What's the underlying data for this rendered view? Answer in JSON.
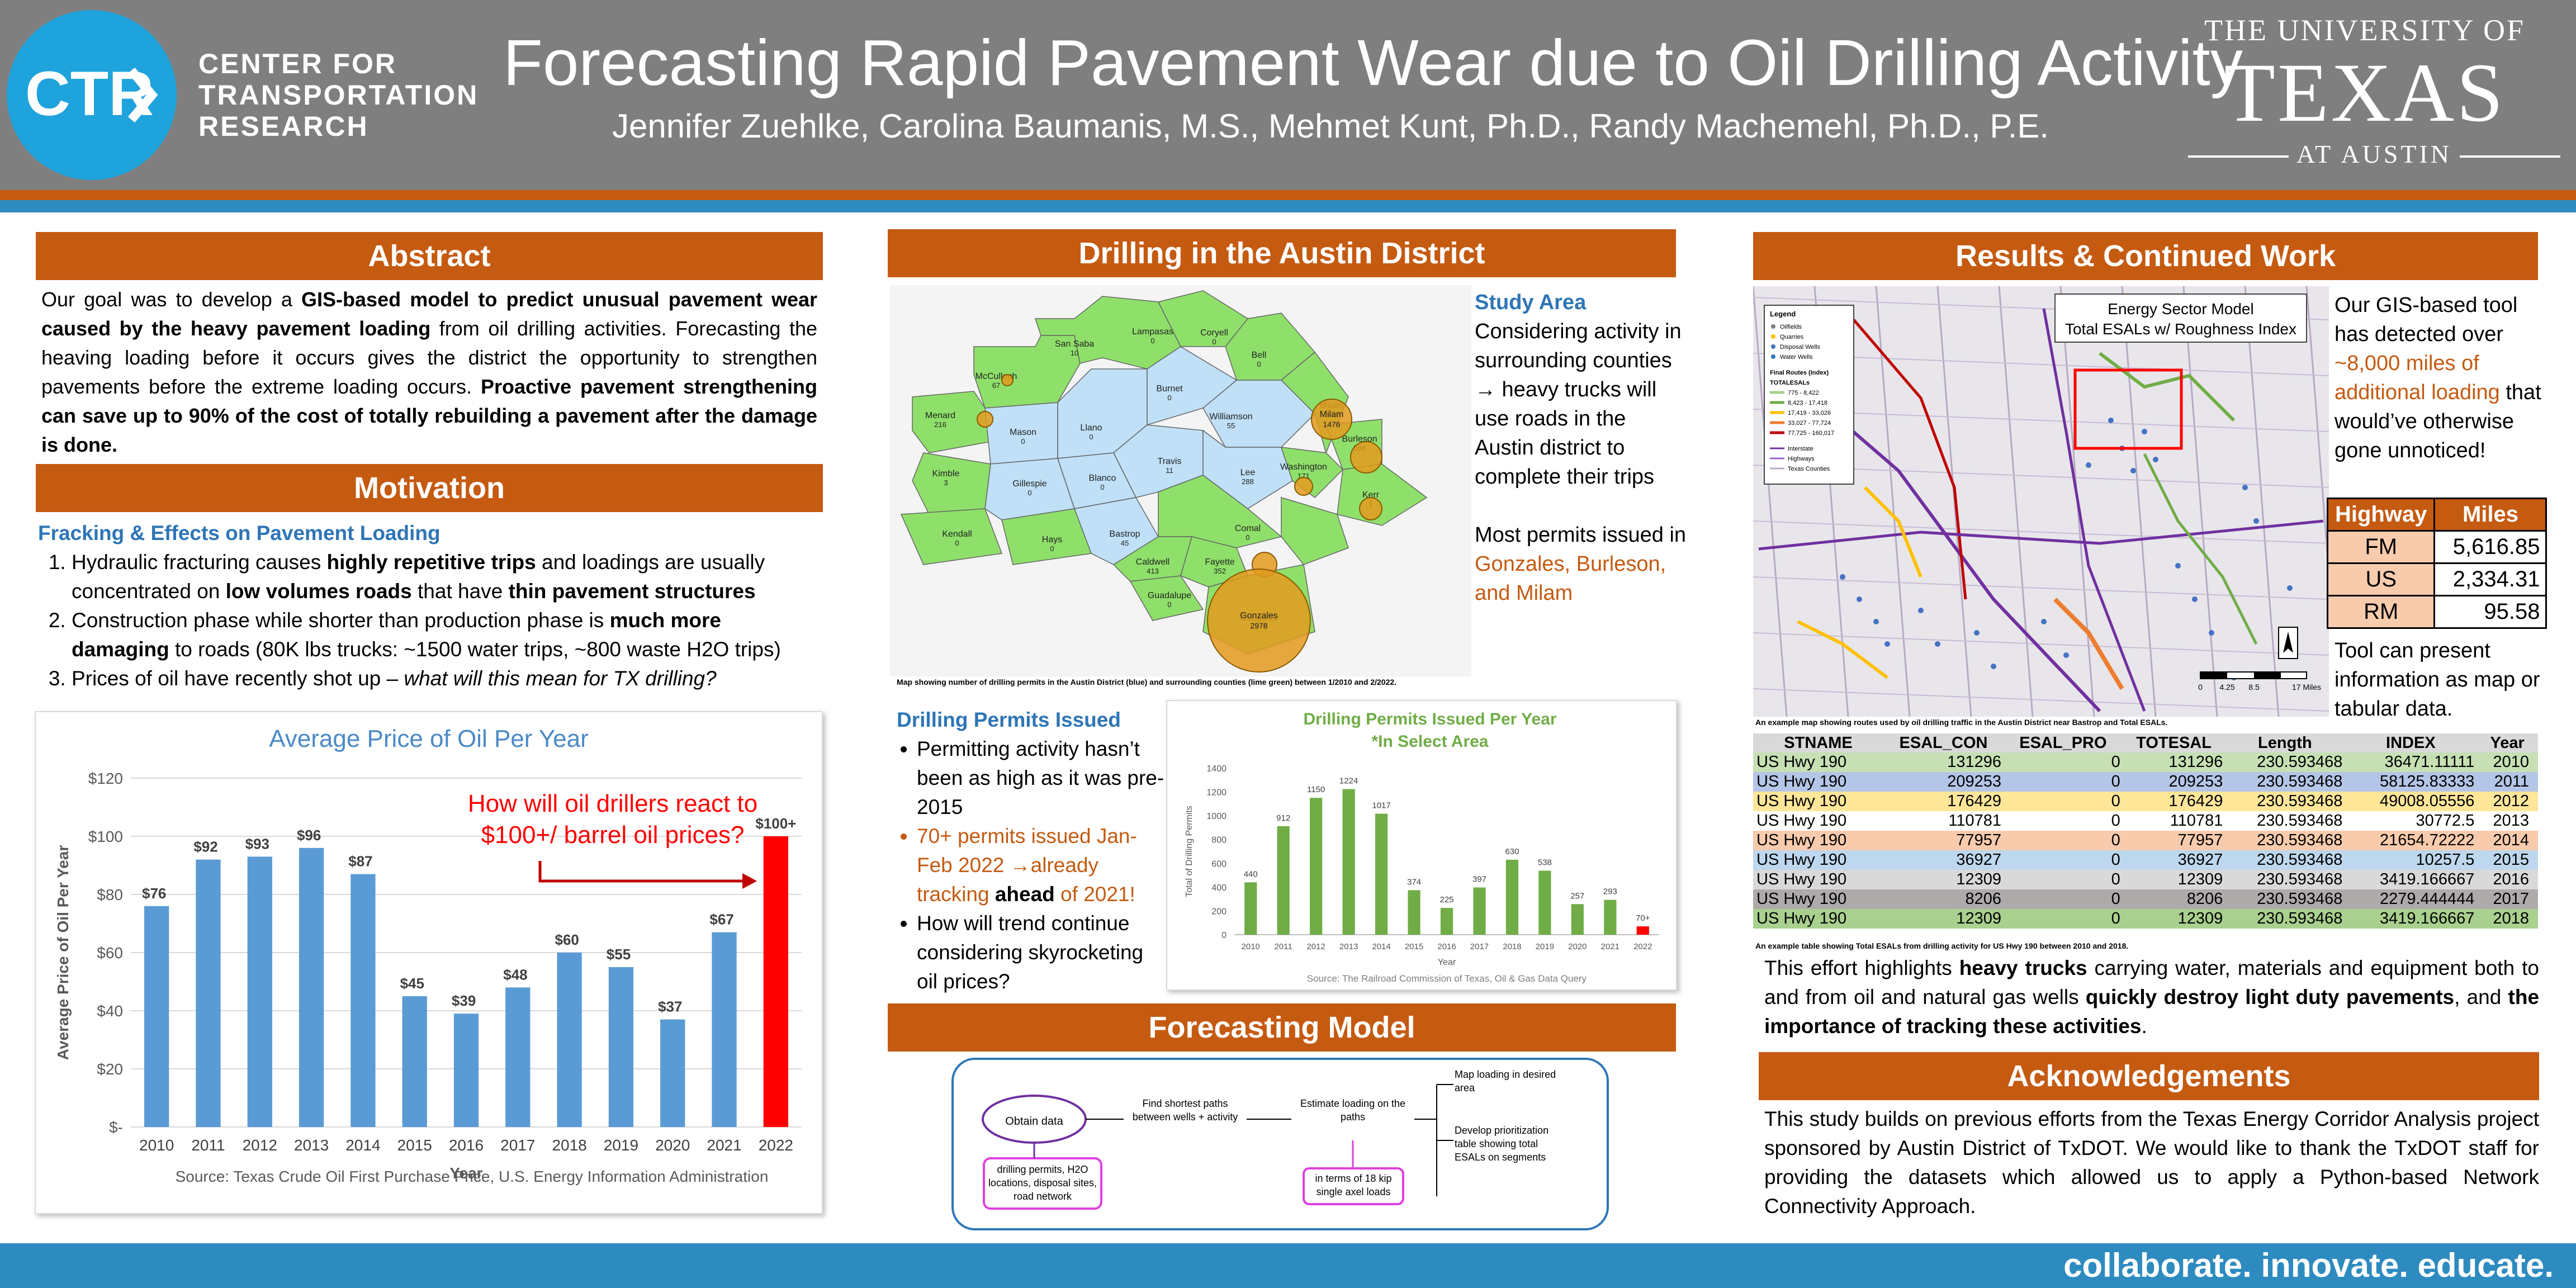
{
  "header": {
    "logo_text": "CTR",
    "org_name": [
      "CENTER FOR",
      "TRANSPORTATION",
      "RESEARCH"
    ],
    "title": "Forecasting Rapid Pavement Wear due to Oil Drilling Activity",
    "authors": "Jennifer Zuehlke, Carolina Baumanis, M.S., Mehmet Kunt, Ph.D., Randy Machemehl, Ph.D., P.E.",
    "university": {
      "top": "THE UNIVERSITY OF",
      "mid": "TEXAS",
      "bot": "AT AUSTIN"
    }
  },
  "abstract": {
    "heading": "Abstract",
    "text": "Our goal was to develop a GIS-based model to predict unusual pavement wear caused by the heavy pavement loading from oil drilling activities. Forecasting the heaving loading before it occurs gives the district the opportunity to strengthen pavements before the extreme loading occurs. Proactive pavement strengthening can save up to 90% of the cost of totally rebuilding a pavement after the damage is done.",
    "seg1": "Our goal was to develop a ",
    "bold1": "GIS-based model to predict unusual pavement wear caused by the heavy pavement loading",
    "seg2": " from oil drilling activities. Forecasting the heaving loading before it occurs gives the district the opportunity to strengthen pavements before the extreme loading occurs. ",
    "bold2": "Proactive pavement strengthening can save up to 90% of the cost of totally rebuilding a pavement after the damage is done."
  },
  "motivation": {
    "heading": "Motivation",
    "subheading": "Fracking & Effects on Pavement Loading",
    "items": [
      {
        "a": "Hydraulic fracturing causes ",
        "b": "highly repetitive trips",
        "c": " and loadings are usually concentrated on ",
        "d": "low volumes roads",
        "e": " that have ",
        "f": "thin pavement structures",
        "g": ""
      },
      {
        "a": "Construction phase while shorter than production phase is ",
        "b": "much more damaging",
        "c": " to roads (80K lbs trucks: ~1500 water trips, ~800 waste H2O trips)"
      },
      {
        "a": "Prices of oil have recently shot up – ",
        "b": "what will this mean for TX drilling?"
      }
    ]
  },
  "oil_chart": {
    "annotation": "How will oil drillers react to $100+/ barrel oil prices?",
    "source": "Source: Texas Crude Oil First Purchase Price, U.S. Energy Information Administration"
  },
  "drilling": {
    "heading": "Drilling in the Austin District",
    "study_area_head": "Study Area",
    "study_area_text": "Considering activity in surrounding counties → heavy trucks will use roads in the Austin district to complete their trips",
    "permits_text1": "Most permits issued in ",
    "permits_text2": "Gonzales, Burleson, and Milam",
    "map_caption": "Map showing number of drilling permits in the Austin District (blue) and surrounding counties (lime green) between 1/2010 and 2/2022.",
    "permits_head": "Drilling Permits Issued",
    "bullets": [
      "Permitting activity hasn’t been as high as it was pre-2015",
      "70+ permits issued Jan-Feb 2022 →already tracking ",
      "How will trend continue considering skyrocketing oil prices?"
    ],
    "bullet2_bold": "ahead",
    "bullet2_end": " of 2021!",
    "counties": [
      {
        "name": "Coryell",
        "value": "0"
      },
      {
        "name": "McCulloch",
        "value": "67"
      },
      {
        "name": "San Saba",
        "value": "10"
      },
      {
        "name": "Lampasas",
        "value": "0"
      },
      {
        "name": "Bell",
        "value": "0"
      },
      {
        "name": "Menard",
        "value": "216"
      },
      {
        "name": "Mason",
        "value": "0"
      },
      {
        "name": "Llano",
        "value": "0"
      },
      {
        "name": "Burnet",
        "value": "0"
      },
      {
        "name": "Williamson",
        "value": "55"
      },
      {
        "name": "Milam",
        "value": "1476"
      },
      {
        "name": "Burleson",
        "value": "584"
      },
      {
        "name": "Kimble",
        "value": "3"
      },
      {
        "name": "Gillespie",
        "value": "0"
      },
      {
        "name": "Blanco",
        "value": "0"
      },
      {
        "name": "Travis",
        "value": "11"
      },
      {
        "name": "Lee",
        "value": "288"
      },
      {
        "name": "Washington",
        "value": "171"
      },
      {
        "name": "Kerr",
        "value": "1"
      },
      {
        "name": "Kendall",
        "value": "0"
      },
      {
        "name": "Hays",
        "value": "0"
      },
      {
        "name": "Bastrop",
        "value": "45"
      },
      {
        "name": "Comal",
        "value": "0"
      },
      {
        "name": "Caldwell",
        "value": "413"
      },
      {
        "name": "Fayette",
        "value": "352"
      },
      {
        "name": "Guadalupe",
        "value": "0"
      },
      {
        "name": "Gonzales",
        "value": "2978"
      }
    ]
  },
  "permits_chart": {
    "source": "Source: The Railroad Commission of Texas, Oil & Gas Data Query"
  },
  "forecasting": {
    "heading": "Forecasting Model",
    "nodes": {
      "obtain": "Obtain data",
      "data_list": "drilling permits, H2O locations, disposal sites, road network",
      "paths": "Find shortest paths between wells + activity",
      "estimate": "Estimate loading on the paths",
      "esal": "in terms of 18 kip single axel loads",
      "map": "Map loading in desired area",
      "develop": "Develop prioritization table showing total ESALs on segments"
    }
  },
  "results": {
    "heading": "Results & Continued Work",
    "map_title": "Energy Sector Model\nTotal ESALs w/ Roughness Index",
    "map_title_1": "Energy Sector Model",
    "map_title_2": "Total ESALs w/ Roughness Index",
    "legend": {
      "title": "Legend",
      "items": [
        "Oilfields",
        "Quarries",
        "Disposal Wells",
        "Water Wells"
      ],
      "routes_head": "Final Routes (Index)",
      "esal_head": "TOTALESALs",
      "ranges": [
        "775 - 8,422",
        "8,423 - 17,418",
        "17,419 - 33,026",
        "33,027 - 77,724",
        "77,725 - 160,017"
      ],
      "other": [
        "Interstate",
        "Highways",
        "Texas Counties"
      ]
    },
    "scale": [
      "0",
      "4.25",
      "8.5",
      "17 Miles"
    ],
    "tool_text1": "Our GIS-based tool has detected over ",
    "tool_text2": "~8,000 miles of additional loading",
    "tool_text3": " that would’ve otherwise gone unnoticed!",
    "tool_present": "Tool can present information as map or tabular data.",
    "map_caption": "An example map showing routes used by oil drilling traffic in the Austin District near Bastrop and Total ESALs.",
    "miles_table": {
      "headers": [
        "Highway",
        "Miles"
      ],
      "rows": [
        [
          "FM",
          "5,616.85"
        ],
        [
          "US",
          "2,334.31"
        ],
        [
          "RM",
          "95.58"
        ]
      ]
    },
    "esal_table": {
      "headers": [
        "STNAME",
        "ESAL_CON",
        "ESAL_PRO",
        "TOTESAL",
        "Length",
        "INDEX",
        "Year"
      ],
      "rows": [
        [
          "US Hwy 190",
          "131296",
          "0",
          "131296",
          "230.593468",
          "36471.11111",
          "2010"
        ],
        [
          "US Hwy 190",
          "209253",
          "0",
          "209253",
          "230.593468",
          "58125.83333",
          "2011"
        ],
        [
          "US Hwy 190",
          "176429",
          "0",
          "176429",
          "230.593468",
          "49008.05556",
          "2012"
        ],
        [
          "US Hwy 190",
          "110781",
          "0",
          "110781",
          "230.593468",
          "30772.5",
          "2013"
        ],
        [
          "US Hwy 190",
          "77957",
          "0",
          "77957",
          "230.593468",
          "21654.72222",
          "2014"
        ],
        [
          "US Hwy 190",
          "36927",
          "0",
          "36927",
          "230.593468",
          "10257.5",
          "2015"
        ],
        [
          "US Hwy 190",
          "12309",
          "0",
          "12309",
          "230.593468",
          "3419.166667",
          "2016"
        ],
        [
          "US Hwy 190",
          "8206",
          "0",
          "8206",
          "230.593468",
          "2279.444444",
          "2017"
        ],
        [
          "US Hwy 190",
          "12309",
          "0",
          "12309",
          "230.593468",
          "3419.166667",
          "2018"
        ]
      ],
      "row_colors": [
        "#c6e0b4",
        "#b4c6e7",
        "#ffe699",
        "#ffffff",
        "#f8cbad",
        "#bdd7ee",
        "#d9d9d9",
        "#aeaaaa",
        "#a9d08e"
      ]
    },
    "table_caption": "An example table showing Total ESALs from drilling activity for US Hwy 190 between 2010 and 2018.",
    "highlight": {
      "a": "This effort highlights ",
      "b": "heavy trucks",
      "c": " carrying water, materials and equipment both to and from oil and natural gas wells ",
      "d": "quickly destroy light duty pavements",
      "e": ", and ",
      "f": "the importance of tracking these activities",
      "g": "."
    }
  },
  "acknowledgements": {
    "heading": "Acknowledgements",
    "text": "This study builds on previous efforts from the Texas Energy Corridor Analysis project sponsored by Austin District of TxDOT. We would like to thank the TxDOT staff for providing the datasets which allowed us to apply a Python-based Network Connectivity Approach."
  },
  "footer": {
    "tagline": "collaborate. innovate. educate."
  },
  "colors": {
    "accent": "#c55a11",
    "blue": "#2e8bc0",
    "header_gray": "#7f7f7f",
    "bar_blue": "#5b9bd5",
    "bar_red": "#ff0000",
    "bar_green": "#70ad47"
  },
  "chart_data": [
    {
      "type": "bar",
      "title": "Average Price of Oil Per Year",
      "xlabel": "Year",
      "ylabel": "Average Price of Oil Per Year",
      "categories": [
        "2010",
        "2011",
        "2012",
        "2013",
        "2014",
        "2015",
        "2016",
        "2017",
        "2018",
        "2019",
        "2020",
        "2021",
        "2022"
      ],
      "values": [
        76,
        92,
        93,
        96,
        87,
        45,
        39,
        48,
        60,
        55,
        37,
        67,
        100
      ],
      "data_labels": [
        "$76",
        "$92",
        "$93",
        "$96",
        "$87",
        "$45",
        "$39",
        "$48",
        "$60",
        "$55",
        "$37",
        "$67",
        "$100+"
      ],
      "yticks": [
        "$-",
        "$20",
        "$40",
        "$60",
        "$80",
        "$100",
        "$120"
      ],
      "ylim": [
        0,
        120
      ],
      "grid": true,
      "highlight_category": "2022"
    },
    {
      "type": "bar",
      "title": "Drilling Permits Issued Per Year",
      "subtitle": "*In Select Area",
      "xlabel": "Year",
      "ylabel": "Total of Drilling Permits",
      "categories": [
        "2010",
        "2011",
        "2012",
        "2013",
        "2014",
        "2015",
        "2016",
        "2017",
        "2018",
        "2019",
        "2020",
        "2021",
        "2022"
      ],
      "values": [
        440,
        912,
        1150,
        1224,
        1017,
        374,
        225,
        397,
        630,
        538,
        257,
        293,
        70
      ],
      "data_labels": [
        "440",
        "912",
        "1150",
        "1224",
        "1017",
        "374",
        "225",
        "397",
        "630",
        "538",
        "257",
        "293",
        "70+"
      ],
      "yticks": [
        "0",
        "200",
        "400",
        "600",
        "800",
        "1000",
        "1200",
        "1400"
      ],
      "ylim": [
        0,
        1400
      ],
      "grid": false,
      "highlight_category": "2022"
    }
  ]
}
